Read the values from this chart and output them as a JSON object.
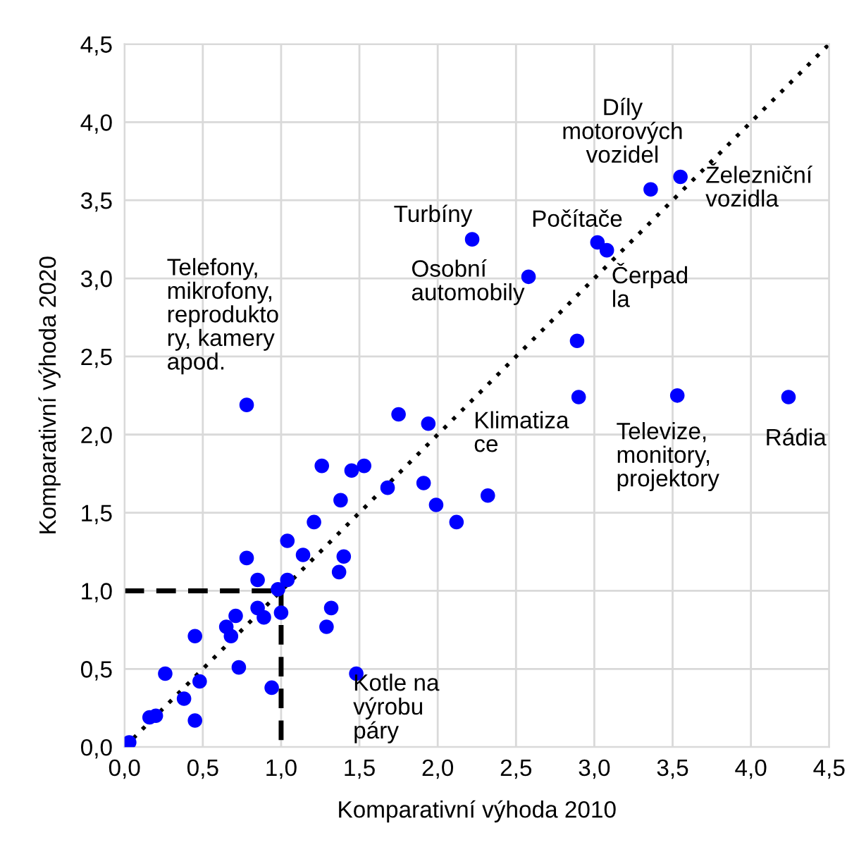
{
  "chart_data": {
    "type": "scatter",
    "xlabel": "Komparativní výhoda 2010",
    "ylabel": "Komparativní výhoda 2020",
    "xlim": [
      0,
      4.5
    ],
    "ylim": [
      0,
      4.5
    ],
    "xticks": [
      {
        "value": 0,
        "label": "0,0"
      },
      {
        "value": 0.5,
        "label": "0,5"
      },
      {
        "value": 1,
        "label": "1,0"
      },
      {
        "value": 1.5,
        "label": "1,5"
      },
      {
        "value": 2,
        "label": "2,0"
      },
      {
        "value": 2.5,
        "label": "2,5"
      },
      {
        "value": 3,
        "label": "3,0"
      },
      {
        "value": 3.5,
        "label": "3,5"
      },
      {
        "value": 4,
        "label": "4,0"
      },
      {
        "value": 4.5,
        "label": "4,5"
      }
    ],
    "yticks": [
      {
        "value": 0,
        "label": "0,0"
      },
      {
        "value": 0.5,
        "label": "0,5"
      },
      {
        "value": 1,
        "label": "1,0"
      },
      {
        "value": 1.5,
        "label": "1,5"
      },
      {
        "value": 2,
        "label": "2,0"
      },
      {
        "value": 2.5,
        "label": "2,5"
      },
      {
        "value": 3,
        "label": "3,0"
      },
      {
        "value": 3.5,
        "label": "3,5"
      },
      {
        "value": 4,
        "label": "4,0"
      },
      {
        "value": 4.5,
        "label": "4,5"
      }
    ],
    "grid": true,
    "legend": false,
    "series": [
      {
        "color": "#0000ff",
        "marker": "circle",
        "x": [
          0.03,
          0.16,
          0.2,
          0.26,
          0.38,
          0.45,
          0.48,
          0.45,
          0.73,
          0.65,
          0.68,
          0.71,
          0.85,
          0.89,
          0.94,
          1.0,
          0.98,
          1.04,
          0.85,
          0.78,
          1.04,
          1.14,
          1.21,
          1.26,
          1.38,
          1.45,
          1.53,
          1.4,
          1.37,
          1.32,
          1.29,
          1.48,
          0.78,
          1.75,
          1.94,
          1.68,
          1.91,
          1.99,
          2.12,
          2.32,
          2.22,
          2.58,
          3.02,
          3.08,
          3.36,
          3.55,
          2.89,
          2.9,
          3.53,
          4.24
        ],
        "values": [
          0.03,
          0.19,
          0.2,
          0.47,
          0.31,
          0.17,
          0.42,
          0.71,
          0.51,
          0.77,
          0.71,
          0.84,
          0.89,
          0.83,
          0.38,
          0.86,
          1.01,
          1.07,
          1.07,
          1.21,
          1.32,
          1.23,
          1.44,
          1.8,
          1.58,
          1.77,
          1.8,
          1.22,
          1.12,
          0.89,
          0.77,
          0.47,
          2.19,
          2.13,
          2.07,
          1.66,
          1.69,
          1.55,
          1.44,
          1.61,
          3.25,
          3.01,
          3.23,
          3.18,
          3.57,
          3.65,
          2.6,
          2.24,
          2.25,
          2.24
        ]
      },
      {
        "type": "line",
        "color": "#000000",
        "marker": "none",
        "line_style": "dotted",
        "x": [
          0,
          4.5
        ],
        "values": [
          0,
          4.5
        ]
      },
      {
        "type": "line",
        "color": "#000000",
        "marker": "none",
        "line_style": "dashed",
        "x": [
          0,
          1,
          1
        ],
        "values": [
          1,
          1,
          0
        ]
      }
    ],
    "annotations": [
      {
        "text": "Díly\nmotorových\nvozidel",
        "x": 3.36,
        "y": 3.57
      },
      {
        "text": "Železniční\nvozidla",
        "x": 3.55,
        "y": 3.65
      },
      {
        "text": "Turbíny",
        "x": 2.22,
        "y": 3.25
      },
      {
        "text": "Počítače",
        "x": 3.02,
        "y": 3.23
      },
      {
        "text": "Osobní\nautomobily",
        "x": 2.58,
        "y": 3.01
      },
      {
        "text": "Čerpad\nla",
        "x": 3.08,
        "y": 3.18
      },
      {
        "text": "Telefony,\nmikrofony,\nreprodukto\nry, kamery\napod.",
        "x": 0.78,
        "y": 2.19
      },
      {
        "text": "Klimatiza\nce",
        "x": 2.32,
        "y": 1.61
      },
      {
        "text": "Televize,\nmonitory,\nprojektory",
        "x": 3.53,
        "y": 2.25
      },
      {
        "text": "Rádia",
        "x": 4.24,
        "y": 2.24
      },
      {
        "text": "Kotle na\nvýrobu\npáry",
        "x": 1.48,
        "y": 0.47
      }
    ]
  }
}
